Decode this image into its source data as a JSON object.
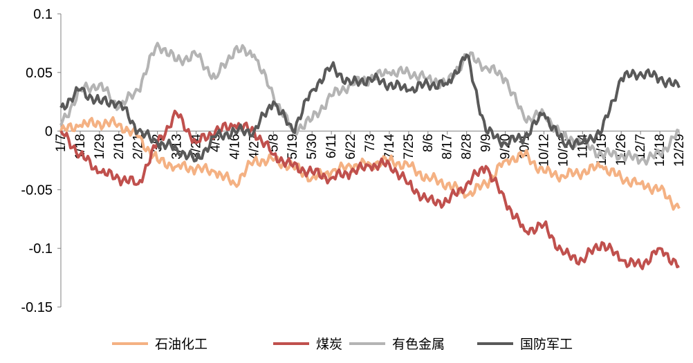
{
  "chart_data": {
    "type": "line",
    "title": "",
    "xlabel": "",
    "ylabel": "",
    "ylim": [
      -0.15,
      0.1
    ],
    "y_ticks": [
      0.1,
      0.05,
      0,
      -0.05,
      -0.1,
      -0.15
    ],
    "y_tick_labels": [
      "0.1",
      "0.05",
      "0",
      "-0.05",
      "-0.1",
      "-0.15"
    ],
    "x_tick_labels": [
      "1/7",
      "1/18",
      "1/29",
      "2/10",
      "2/21",
      "3/2",
      "3/13",
      "3/24",
      "4/5",
      "4/16",
      "4/27",
      "5/8",
      "5/19",
      "5/30",
      "6/11",
      "6/22",
      "7/3",
      "7/14",
      "7/25",
      "8/6",
      "8/17",
      "8/28",
      "9/9",
      "9/20",
      "10/1",
      "10/12",
      "10/23",
      "11/4",
      "11/15",
      "11/26",
      "12/7",
      "12/18",
      "12/29"
    ],
    "grid": false,
    "legend_position": "bottom",
    "series": [
      {
        "name": "石油化工",
        "color": "#F4B183",
        "values": [
          0,
          0.005,
          0.007,
          0.006,
          -0.005,
          -0.025,
          -0.03,
          -0.032,
          -0.035,
          -0.045,
          -0.025,
          -0.025,
          -0.03,
          -0.04,
          -0.035,
          -0.03,
          -0.028,
          -0.025,
          -0.03,
          -0.04,
          -0.045,
          -0.055,
          -0.045,
          -0.025,
          -0.02,
          -0.035,
          -0.038,
          -0.035,
          -0.03,
          -0.04,
          -0.045,
          -0.05,
          -0.066
        ]
      },
      {
        "name": "煤炭",
        "color": "#C0504D",
        "values": [
          0,
          -0.02,
          -0.035,
          -0.04,
          -0.045,
          -0.01,
          0.015,
          -0.01,
          0,
          0.005,
          0,
          -0.02,
          -0.03,
          -0.035,
          -0.04,
          -0.035,
          -0.03,
          -0.028,
          -0.045,
          -0.06,
          -0.06,
          -0.045,
          -0.03,
          -0.06,
          -0.085,
          -0.08,
          -0.105,
          -0.11,
          -0.095,
          -0.11,
          -0.115,
          -0.1,
          -0.115
        ]
      },
      {
        "name": "有色金属",
        "color": "#B4B4B4",
        "values": [
          0.005,
          0.035,
          0.04,
          0.02,
          0.035,
          0.075,
          0.06,
          0.065,
          0.045,
          0.07,
          0.065,
          0.03,
          0,
          0.01,
          0.03,
          0.04,
          0.045,
          0.05,
          0.05,
          0.045,
          0.04,
          0.065,
          0.055,
          0.045,
          0.01,
          0.015,
          -0.005,
          -0.01,
          -0.02,
          -0.02,
          -0.025,
          -0.02,
          0
        ]
      },
      {
        "name": "国防军工",
        "color": "#595959",
        "values": [
          0.02,
          0.035,
          0.025,
          0.025,
          0,
          -0.01,
          -0.015,
          -0.025,
          -0.005,
          0,
          0,
          0.025,
          0,
          0.035,
          0.055,
          0.04,
          0.045,
          0.04,
          0.035,
          0.04,
          0.04,
          0.065,
          0,
          -0.01,
          -0.005,
          0.015,
          -0.01,
          -0.01,
          0,
          0.045,
          0.05,
          0.045,
          0.037
        ]
      }
    ]
  }
}
